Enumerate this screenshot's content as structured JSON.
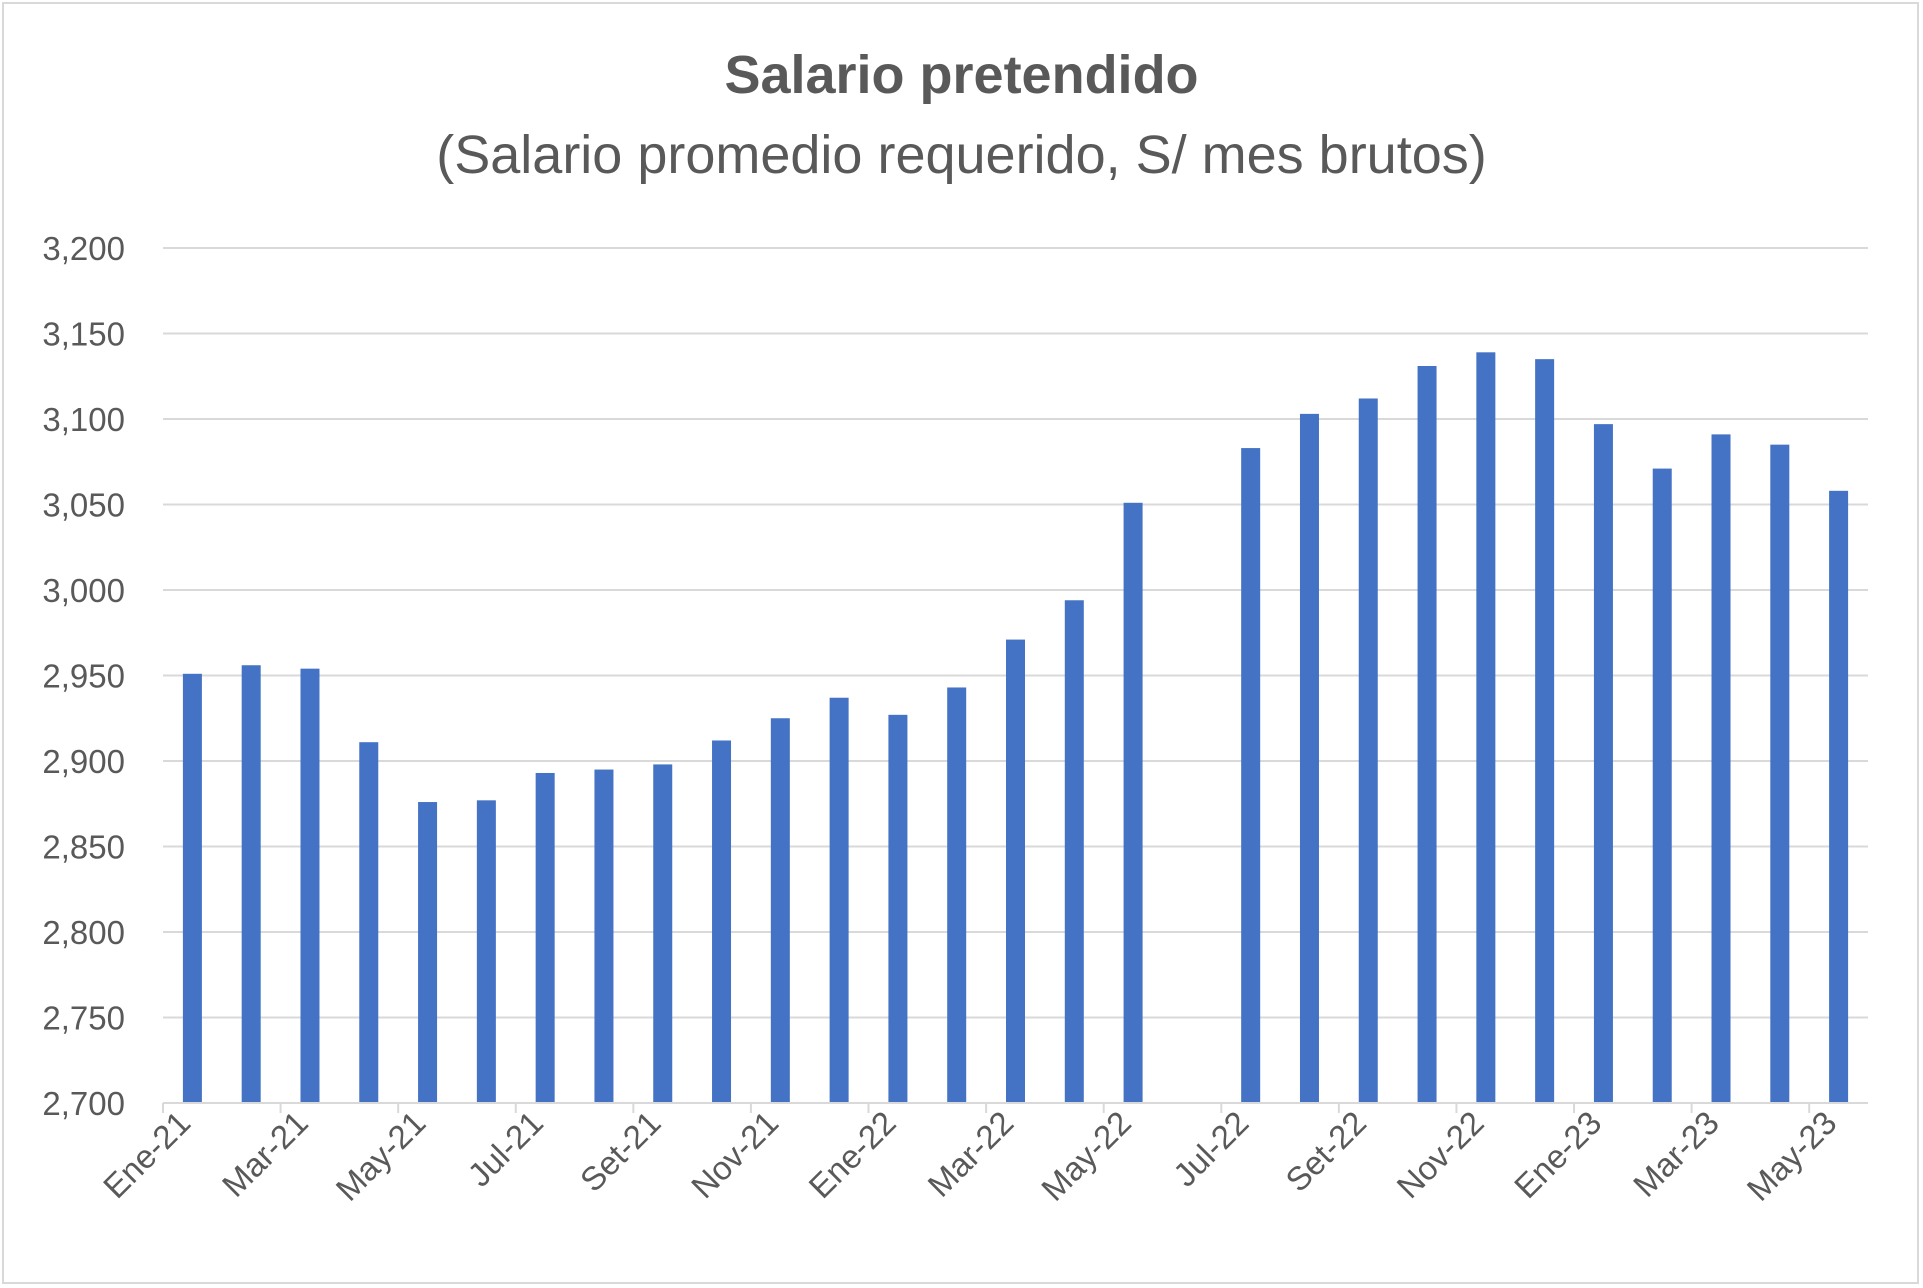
{
  "chart_data": {
    "type": "bar",
    "title": "Salario pretendido",
    "subtitle": "(Salario promedio requerido, S/ mes brutos)",
    "xlabel": "",
    "ylabel": "",
    "ylim": [
      2700,
      3200
    ],
    "yticks": [
      2700,
      2750,
      2800,
      2850,
      2900,
      2950,
      3000,
      3050,
      3100,
      3150,
      3200
    ],
    "ytick_labels": [
      "2,700",
      "2,750",
      "2,800",
      "2,850",
      "2,900",
      "2,950",
      "3,000",
      "3,050",
      "3,100",
      "3,150",
      "3,200"
    ],
    "grid": true,
    "legend": "none",
    "bar_color": "#4472C4",
    "grid_color": "#d9d9d9",
    "text_color": "#595959",
    "categories": [
      "Ene-21",
      "Feb-21",
      "Mar-21",
      "Abr-21",
      "May-21",
      "Jun-21",
      "Jul-21",
      "Ago-21",
      "Set-21",
      "Oct-21",
      "Nov-21",
      "Dic-21",
      "Ene-22",
      "Feb-22",
      "Mar-22",
      "Abr-22",
      "May-22",
      "Jun-22",
      "Jul-22",
      "Ago-22",
      "Set-22",
      "Oct-22",
      "Nov-22",
      "Dic-22",
      "Ene-23",
      "Feb-23",
      "Mar-23",
      "Abr-23",
      "May-23"
    ],
    "xtick_labels": [
      "Ene-21",
      "Mar-21",
      "May-21",
      "Jul-21",
      "Set-21",
      "Nov-21",
      "Ene-22",
      "Mar-22",
      "May-22",
      "Jul-22",
      "Set-22",
      "Nov-22",
      "Ene-23",
      "Mar-23",
      "May-23"
    ],
    "values": [
      2951,
      2956,
      2954,
      2911,
      2876,
      2877,
      2893,
      2895,
      2898,
      2912,
      2925,
      2937,
      2927,
      2943,
      2971,
      2994,
      3051,
      null,
      3083,
      3103,
      3112,
      3131,
      3139,
      3135,
      3097,
      3071,
      3091,
      3085,
      3058
    ]
  }
}
